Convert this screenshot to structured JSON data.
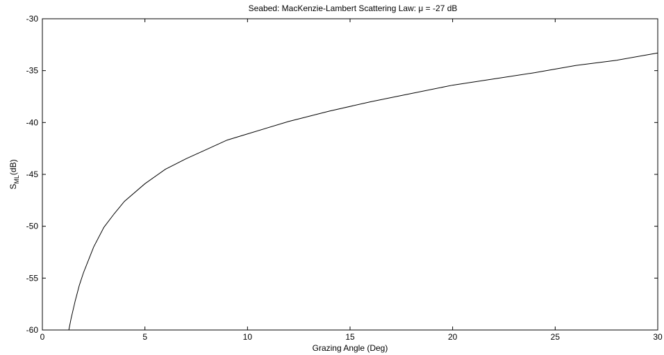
{
  "chart_data": {
    "type": "line",
    "title_prefix": "Seabed: MacKenzie-Lambert Scattering Law: ",
    "title_symbol": "μ",
    "title_suffix": " = -27 dB",
    "xlabel": "Grazing Angle (Deg)",
    "ylabel_main": "S",
    "ylabel_sub": "ML",
    "ylabel_unit": "(dB)",
    "xlim": [
      0,
      30
    ],
    "ylim": [
      -60,
      -30
    ],
    "xticks": [
      "0",
      "5",
      "10",
      "15",
      "20",
      "25",
      "30"
    ],
    "yticks": [
      "-30",
      "-35",
      "-40",
      "-45",
      "-50",
      "-55",
      "-60"
    ],
    "grid": false,
    "line_color": "#000000",
    "series": [
      {
        "x": [
          1.29,
          1.4,
          1.6,
          1.8,
          2.0,
          2.5,
          3.0,
          3.5,
          4.0,
          5.0,
          6.0,
          7.0,
          8.0,
          9.0,
          10.0,
          12.0,
          14.0,
          16.0,
          18.0,
          20.0,
          22.0,
          24.0,
          26.0,
          28.0,
          30.0
        ],
        "y": [
          -60.0,
          -58.9,
          -57.2,
          -55.7,
          -54.5,
          -52.0,
          -50.1,
          -48.8,
          -47.6,
          -45.9,
          -44.5,
          -43.5,
          -42.6,
          -41.7,
          -41.1,
          -39.9,
          -38.9,
          -38.0,
          -37.2,
          -36.4,
          -35.8,
          -35.2,
          -34.5,
          -34.0,
          -33.3
        ]
      }
    ]
  }
}
